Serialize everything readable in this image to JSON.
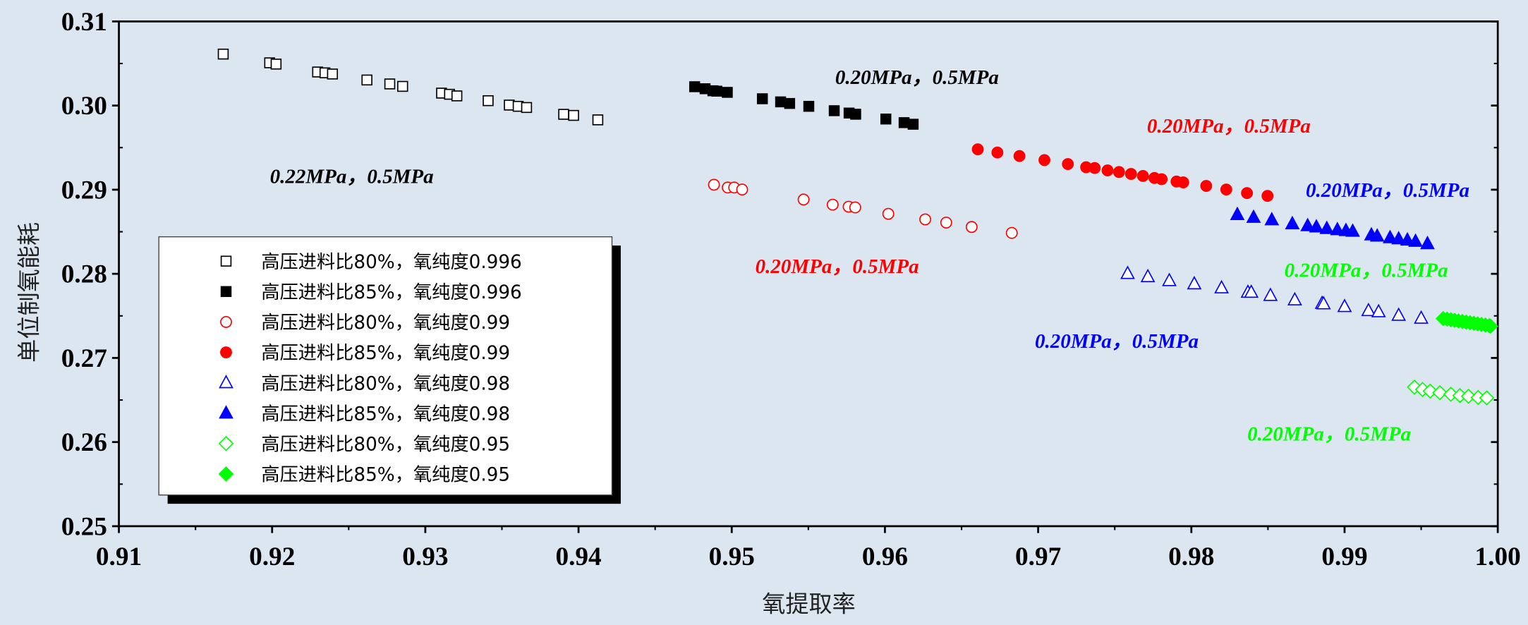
{
  "chart_data": {
    "type": "scatter",
    "title": "",
    "xlabel": "氧提取率",
    "ylabel": "单位制氧能耗",
    "xlim": [
      0.91,
      1.0
    ],
    "ylim": [
      0.25,
      0.31
    ],
    "xticks": [
      "0.91",
      "0.92",
      "0.93",
      "0.94",
      "0.95",
      "0.96",
      "0.97",
      "0.98",
      "0.99",
      "1.00"
    ],
    "yticks": [
      "0.25",
      "0.26",
      "0.27",
      "0.28",
      "0.29",
      "0.30",
      "0.31"
    ],
    "grid": false,
    "legend_placement": "center-left",
    "series": [
      {
        "name": "高压进料比80%，氧纯度0.996",
        "marker": "square-open",
        "color": "#000000",
        "x": [
          0.91681,
          0.91984,
          0.92026,
          0.92297,
          0.92345,
          0.92394,
          0.92619,
          0.92768,
          0.92852,
          0.93106,
          0.93158,
          0.93206,
          0.9341,
          0.93548,
          0.93606,
          0.93661,
          0.93903,
          0.93968,
          0.94126
        ],
        "y": [
          0.30612,
          0.30508,
          0.30493,
          0.30399,
          0.30389,
          0.30375,
          0.30304,
          0.30257,
          0.30228,
          0.30148,
          0.30134,
          0.30115,
          0.30058,
          0.30006,
          0.29991,
          0.29977,
          0.29896,
          0.29883,
          0.2983
        ]
      },
      {
        "name": "高压进料比85%，氧纯度0.996",
        "marker": "square-filled",
        "color": "#000000",
        "x": [
          0.94758,
          0.94826,
          0.94877,
          0.94903,
          0.94971,
          0.952,
          0.95319,
          0.95378,
          0.95503,
          0.95669,
          0.95766,
          0.95809,
          0.96006,
          0.96125,
          0.96184
        ],
        "y": [
          0.30224,
          0.302,
          0.30176,
          0.30171,
          0.30157,
          0.30081,
          0.30044,
          0.30025,
          0.29991,
          0.29939,
          0.29911,
          0.29897,
          0.2984,
          0.29797,
          0.29778
        ]
      },
      {
        "name": "高压进料比80%，氧纯度0.99",
        "marker": "circle-open",
        "color": "#ff0000",
        "x": [
          0.94884,
          0.94974,
          0.95016,
          0.95068,
          0.95469,
          0.95659,
          0.95763,
          0.95806,
          0.96022,
          0.96263,
          0.964,
          0.96566,
          0.96828
        ],
        "y": [
          0.29059,
          0.29026,
          0.29026,
          0.29002,
          0.28883,
          0.28822,
          0.28798,
          0.28789,
          0.28713,
          0.28647,
          0.28609,
          0.28557,
          0.28486
        ]
      },
      {
        "name": "高压进料比85%，氧纯度0.99",
        "marker": "circle-filled",
        "color": "#ff0000",
        "x": [
          0.96606,
          0.96734,
          0.96878,
          0.97041,
          0.97194,
          0.97313,
          0.97369,
          0.97453,
          0.97528,
          0.97606,
          0.97684,
          0.97759,
          0.97806,
          0.97903,
          0.97947,
          0.98097,
          0.98228,
          0.98363,
          0.98497
        ],
        "y": [
          0.2948,
          0.29442,
          0.294,
          0.29352,
          0.29305,
          0.29267,
          0.29258,
          0.29229,
          0.2921,
          0.29187,
          0.29163,
          0.29139,
          0.29125,
          0.29097,
          0.29087,
          0.29045,
          0.29002,
          0.2896,
          0.28926
        ]
      },
      {
        "name": "高压进料比80%，氧纯度0.98",
        "marker": "triangle-open",
        "color": "#0000ff",
        "x": [
          0.97584,
          0.97716,
          0.97856,
          0.98019,
          0.98197,
          0.98369,
          0.98391,
          0.98516,
          0.98675,
          0.98853,
          0.98863,
          0.99,
          0.99156,
          0.99222,
          0.99353,
          0.995
        ],
        "y": [
          0.28003,
          0.27965,
          0.27918,
          0.2788,
          0.27832,
          0.2778,
          0.2778,
          0.27742,
          0.2769,
          0.27648,
          0.27643,
          0.2761,
          0.27562,
          0.27548,
          0.27506,
          0.27472
        ]
      },
      {
        "name": "高压进料比85%，氧纯度0.98",
        "marker": "triangle-filled",
        "color": "#0000ff",
        "x": [
          0.983,
          0.98406,
          0.98525,
          0.98659,
          0.98759,
          0.98816,
          0.98884,
          0.98953,
          0.99009,
          0.99053,
          0.99175,
          0.99213,
          0.99297,
          0.99353,
          0.9941,
          0.99463,
          0.99541
        ],
        "y": [
          0.28704,
          0.28671,
          0.28642,
          0.28595,
          0.28571,
          0.28557,
          0.28538,
          0.28524,
          0.28514,
          0.28505,
          0.28462,
          0.28448,
          0.28429,
          0.28415,
          0.28401,
          0.28386,
          0.28358
        ]
      },
      {
        "name": "高压进料比80%，氧纯度0.95",
        "marker": "diamond-open",
        "color": "#00ff00",
        "x": [
          0.99456,
          0.99509,
          0.99559,
          0.99622,
          0.99694,
          0.99753,
          0.99809,
          0.99872,
          0.99928
        ],
        "y": [
          0.26653,
          0.26625,
          0.26606,
          0.26587,
          0.26568,
          0.26553,
          0.26544,
          0.2653,
          0.26525
        ]
      },
      {
        "name": "高压进料比85%，氧纯度0.95",
        "marker": "diamond-filled",
        "color": "#00ff00",
        "x": [
          0.99644,
          0.99669,
          0.99694,
          0.99719,
          0.99744,
          0.99769,
          0.99794,
          0.99819,
          0.99844,
          0.99869,
          0.99894,
          0.99919,
          0.99944,
          0.99953
        ],
        "y": [
          0.27468,
          0.27461,
          0.27454,
          0.27447,
          0.2744,
          0.27433,
          0.27426,
          0.27419,
          0.27412,
          0.27405,
          0.27398,
          0.27391,
          0.27384,
          0.27378
        ]
      }
    ],
    "annotations": [
      {
        "text": "0.22MPa，0.5MPa",
        "color": "#000000"
      },
      {
        "text": "0.20MPa，0.5MPa",
        "color": "#000000"
      },
      {
        "text": "0.20MPa，0.5MPa",
        "color": "#ff0000"
      },
      {
        "text": "0.20MPa，0.5MPa",
        "color": "#ff0000"
      },
      {
        "text": "0.20MPa，0.5MPa",
        "color": "#0000ff"
      },
      {
        "text": "0.20MPa，0.5MPa",
        "color": "#0000ff"
      },
      {
        "text": "0.20MPa，0.5MPa",
        "color": "#00ff00"
      },
      {
        "text": "0.20MPa，0.5MPa",
        "color": "#00ff00"
      }
    ]
  }
}
